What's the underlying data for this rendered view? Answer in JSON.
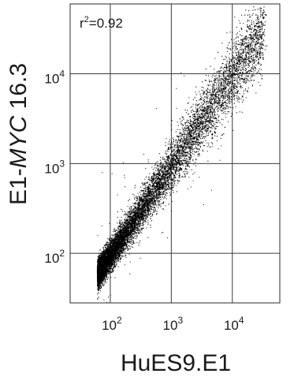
{
  "chart_data": {
    "type": "scatter",
    "xlabel": "HuES9.E1",
    "ylabel_prefix": "E1-",
    "ylabel_gene": "MYC",
    "ylabel_suffix": " 16.3",
    "x_scale": "log",
    "y_scale": "log",
    "xlim": [
      22,
      60000
    ],
    "ylim": [
      28,
      60000
    ],
    "x_ticks": [
      {
        "base": "10",
        "exp": "2",
        "value": 100
      },
      {
        "base": "10",
        "exp": "3",
        "value": 1000
      },
      {
        "base": "10",
        "exp": "4",
        "value": 10000
      }
    ],
    "y_ticks": [
      {
        "base": "10",
        "exp": "2",
        "value": 100
      },
      {
        "base": "10",
        "exp": "3",
        "value": 1000
      },
      {
        "base": "10",
        "exp": "4",
        "value": 10000
      }
    ],
    "grid": true,
    "annotation": {
      "text_base": "r",
      "text_exp": "2",
      "text_rest": "=0.92"
    },
    "r_squared": 0.92,
    "point_color": "#000000",
    "grid_color": "#3a3a3a",
    "cloud": {
      "n_points": 14000,
      "x_log10_range": [
        1.78,
        4.5
      ],
      "y_offset_log10": -0.02,
      "point_count_note": ""
    }
  }
}
